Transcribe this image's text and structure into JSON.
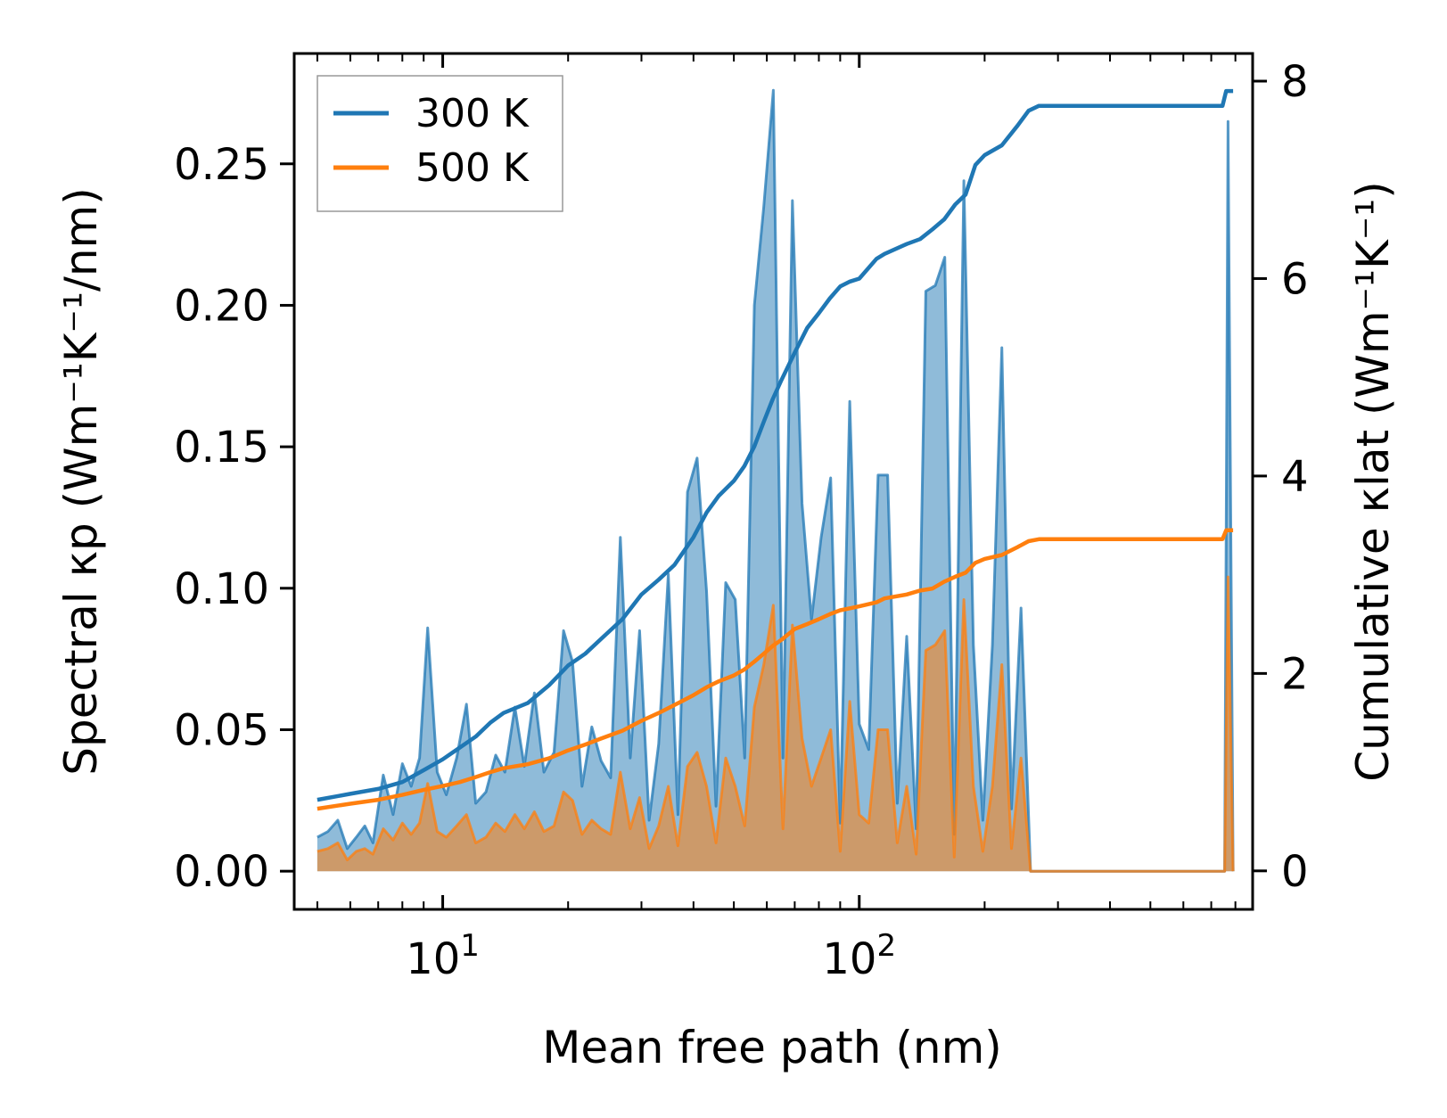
{
  "chart_data": {
    "type": "line",
    "xlabel": "Mean free path (nm)",
    "ylabel_left": "Spectral κp (Wm⁻¹K⁻¹/nm)",
    "ylabel_right": "Cumulative κlat (Wm⁻¹K⁻¹)",
    "xscale": "log",
    "xlim": [
      4.4,
      880
    ],
    "ylim_left": [
      -0.0135,
      0.289
    ],
    "ylim_right": [
      -0.39,
      8.28
    ],
    "x_ticks": [
      {
        "value": 10,
        "base": "10",
        "exp": "1"
      },
      {
        "value": 100,
        "base": "10",
        "exp": "2"
      }
    ],
    "y_ticks_left": [
      "0.00",
      "0.05",
      "0.10",
      "0.15",
      "0.20",
      "0.25"
    ],
    "y_ticks_right": [
      "0",
      "2",
      "4",
      "6",
      "8"
    ],
    "legend": [
      "300 K",
      "500 K"
    ],
    "colors": {
      "300K": "#1f77b4",
      "500K": "#ff7f0e"
    },
    "spectral": {
      "x": [
        5,
        5.3,
        5.6,
        5.9,
        6.2,
        6.5,
        6.8,
        7.2,
        7.6,
        8,
        8.4,
        8.8,
        9.2,
        9.7,
        10.2,
        10.8,
        11.4,
        12,
        12.7,
        13.4,
        14.1,
        14.9,
        15.7,
        16.6,
        17.5,
        18.5,
        19.5,
        20.5,
        21.6,
        22.8,
        24,
        25.3,
        26.7,
        28.2,
        29.7,
        31.3,
        33,
        34.8,
        36.7,
        38.7,
        40.8,
        43,
        45.3,
        47.8,
        50.4,
        53.1,
        56,
        59,
        62.2,
        65.6,
        69.1,
        72.9,
        76.8,
        81,
        85.4,
        90,
        94.9,
        100,
        105.4,
        111,
        117,
        123.4,
        130,
        137,
        144.5,
        152.3,
        160.5,
        169.1,
        178.3,
        188,
        198,
        208.8,
        220,
        232,
        244.5,
        257.8,
        271.7,
        286.4,
        301.9,
        318.2,
        754,
        768,
        790
      ],
      "series": [
        {
          "name": "300 K",
          "values": [
            0.012,
            0.014,
            0.018,
            0.008,
            0.012,
            0.016,
            0.01,
            0.034,
            0.02,
            0.038,
            0.03,
            0.04,
            0.086,
            0.035,
            0.027,
            0.04,
            0.059,
            0.024,
            0.028,
            0.041,
            0.035,
            0.058,
            0.037,
            0.063,
            0.035,
            0.042,
            0.085,
            0.074,
            0.03,
            0.051,
            0.039,
            0.033,
            0.118,
            0.04,
            0.085,
            0.018,
            0.045,
            0.105,
            0.02,
            0.134,
            0.146,
            0.099,
            0.023,
            0.102,
            0.096,
            0.04,
            0.2,
            0.235,
            0.276,
            0.04,
            0.237,
            0.13,
            0.089,
            0.118,
            0.139,
            0.017,
            0.166,
            0.052,
            0.043,
            0.14,
            0.14,
            0.024,
            0.083,
            0.015,
            0.205,
            0.207,
            0.217,
            0.013,
            0.244,
            0.08,
            0.018,
            0.08,
            0.185,
            0.022,
            0.093,
            0.0,
            0.0,
            0.0,
            0.0,
            0.0,
            0.0,
            0.265,
            0.0
          ]
        },
        {
          "name": "500 K",
          "values": [
            0.007,
            0.008,
            0.01,
            0.004,
            0.007,
            0.008,
            0.006,
            0.015,
            0.011,
            0.017,
            0.013,
            0.017,
            0.031,
            0.014,
            0.012,
            0.016,
            0.02,
            0.01,
            0.012,
            0.017,
            0.014,
            0.02,
            0.015,
            0.021,
            0.014,
            0.016,
            0.028,
            0.025,
            0.013,
            0.018,
            0.015,
            0.013,
            0.035,
            0.015,
            0.026,
            0.008,
            0.016,
            0.03,
            0.009,
            0.037,
            0.042,
            0.03,
            0.01,
            0.04,
            0.03,
            0.016,
            0.058,
            0.073,
            0.094,
            0.015,
            0.087,
            0.047,
            0.03,
            0.04,
            0.05,
            0.007,
            0.06,
            0.02,
            0.017,
            0.05,
            0.05,
            0.01,
            0.03,
            0.006,
            0.078,
            0.08,
            0.085,
            0.005,
            0.096,
            0.03,
            0.007,
            0.03,
            0.073,
            0.008,
            0.04,
            0.0,
            0.0,
            0.0,
            0.0,
            0.0,
            0.0,
            0.104,
            0.0
          ]
        }
      ]
    },
    "cumulative": {
      "series": [
        {
          "name": "300 K",
          "x": [
            5,
            6,
            7,
            8,
            9,
            10,
            11,
            12,
            13,
            14,
            16,
            18,
            20,
            22,
            24,
            27,
            30,
            33,
            36,
            40,
            43,
            46,
            50,
            53,
            56,
            59,
            62,
            65,
            70,
            75,
            80,
            85,
            90,
            95,
            100,
            110,
            115,
            130,
            140,
            150,
            160,
            170,
            180,
            190,
            200,
            220,
            240,
            255,
            270,
            300,
            700,
            745,
            760,
            790
          ],
          "values": [
            0.72,
            0.78,
            0.83,
            0.9,
            1.02,
            1.13,
            1.25,
            1.36,
            1.5,
            1.6,
            1.7,
            1.88,
            2.08,
            2.2,
            2.35,
            2.55,
            2.8,
            2.95,
            3.1,
            3.38,
            3.63,
            3.8,
            3.95,
            4.1,
            4.3,
            4.55,
            4.78,
            4.97,
            5.25,
            5.5,
            5.65,
            5.8,
            5.92,
            5.97,
            6.0,
            6.2,
            6.25,
            6.35,
            6.4,
            6.5,
            6.6,
            6.75,
            6.85,
            7.15,
            7.25,
            7.35,
            7.55,
            7.7,
            7.75,
            7.75,
            7.75,
            7.75,
            7.9,
            7.9
          ]
        },
        {
          "name": "500 K",
          "x": [
            5,
            6,
            7,
            8,
            9,
            10,
            11,
            12,
            13,
            14,
            16,
            18,
            20,
            22,
            24,
            27,
            30,
            33,
            36,
            40,
            43,
            46,
            50,
            53,
            56,
            59,
            62,
            65,
            70,
            75,
            80,
            85,
            90,
            95,
            100,
            110,
            115,
            130,
            140,
            150,
            160,
            170,
            180,
            190,
            200,
            220,
            240,
            255,
            270,
            300,
            700,
            745,
            760,
            790
          ],
          "values": [
            0.63,
            0.68,
            0.72,
            0.77,
            0.82,
            0.86,
            0.9,
            0.95,
            1.0,
            1.04,
            1.08,
            1.14,
            1.22,
            1.28,
            1.34,
            1.42,
            1.52,
            1.6,
            1.68,
            1.78,
            1.86,
            1.92,
            1.98,
            2.04,
            2.12,
            2.2,
            2.28,
            2.34,
            2.45,
            2.5,
            2.55,
            2.6,
            2.64,
            2.66,
            2.68,
            2.72,
            2.76,
            2.8,
            2.84,
            2.86,
            2.93,
            2.98,
            3.02,
            3.12,
            3.16,
            3.2,
            3.28,
            3.34,
            3.36,
            3.36,
            3.36,
            3.36,
            3.45,
            3.45
          ]
        }
      ]
    }
  }
}
